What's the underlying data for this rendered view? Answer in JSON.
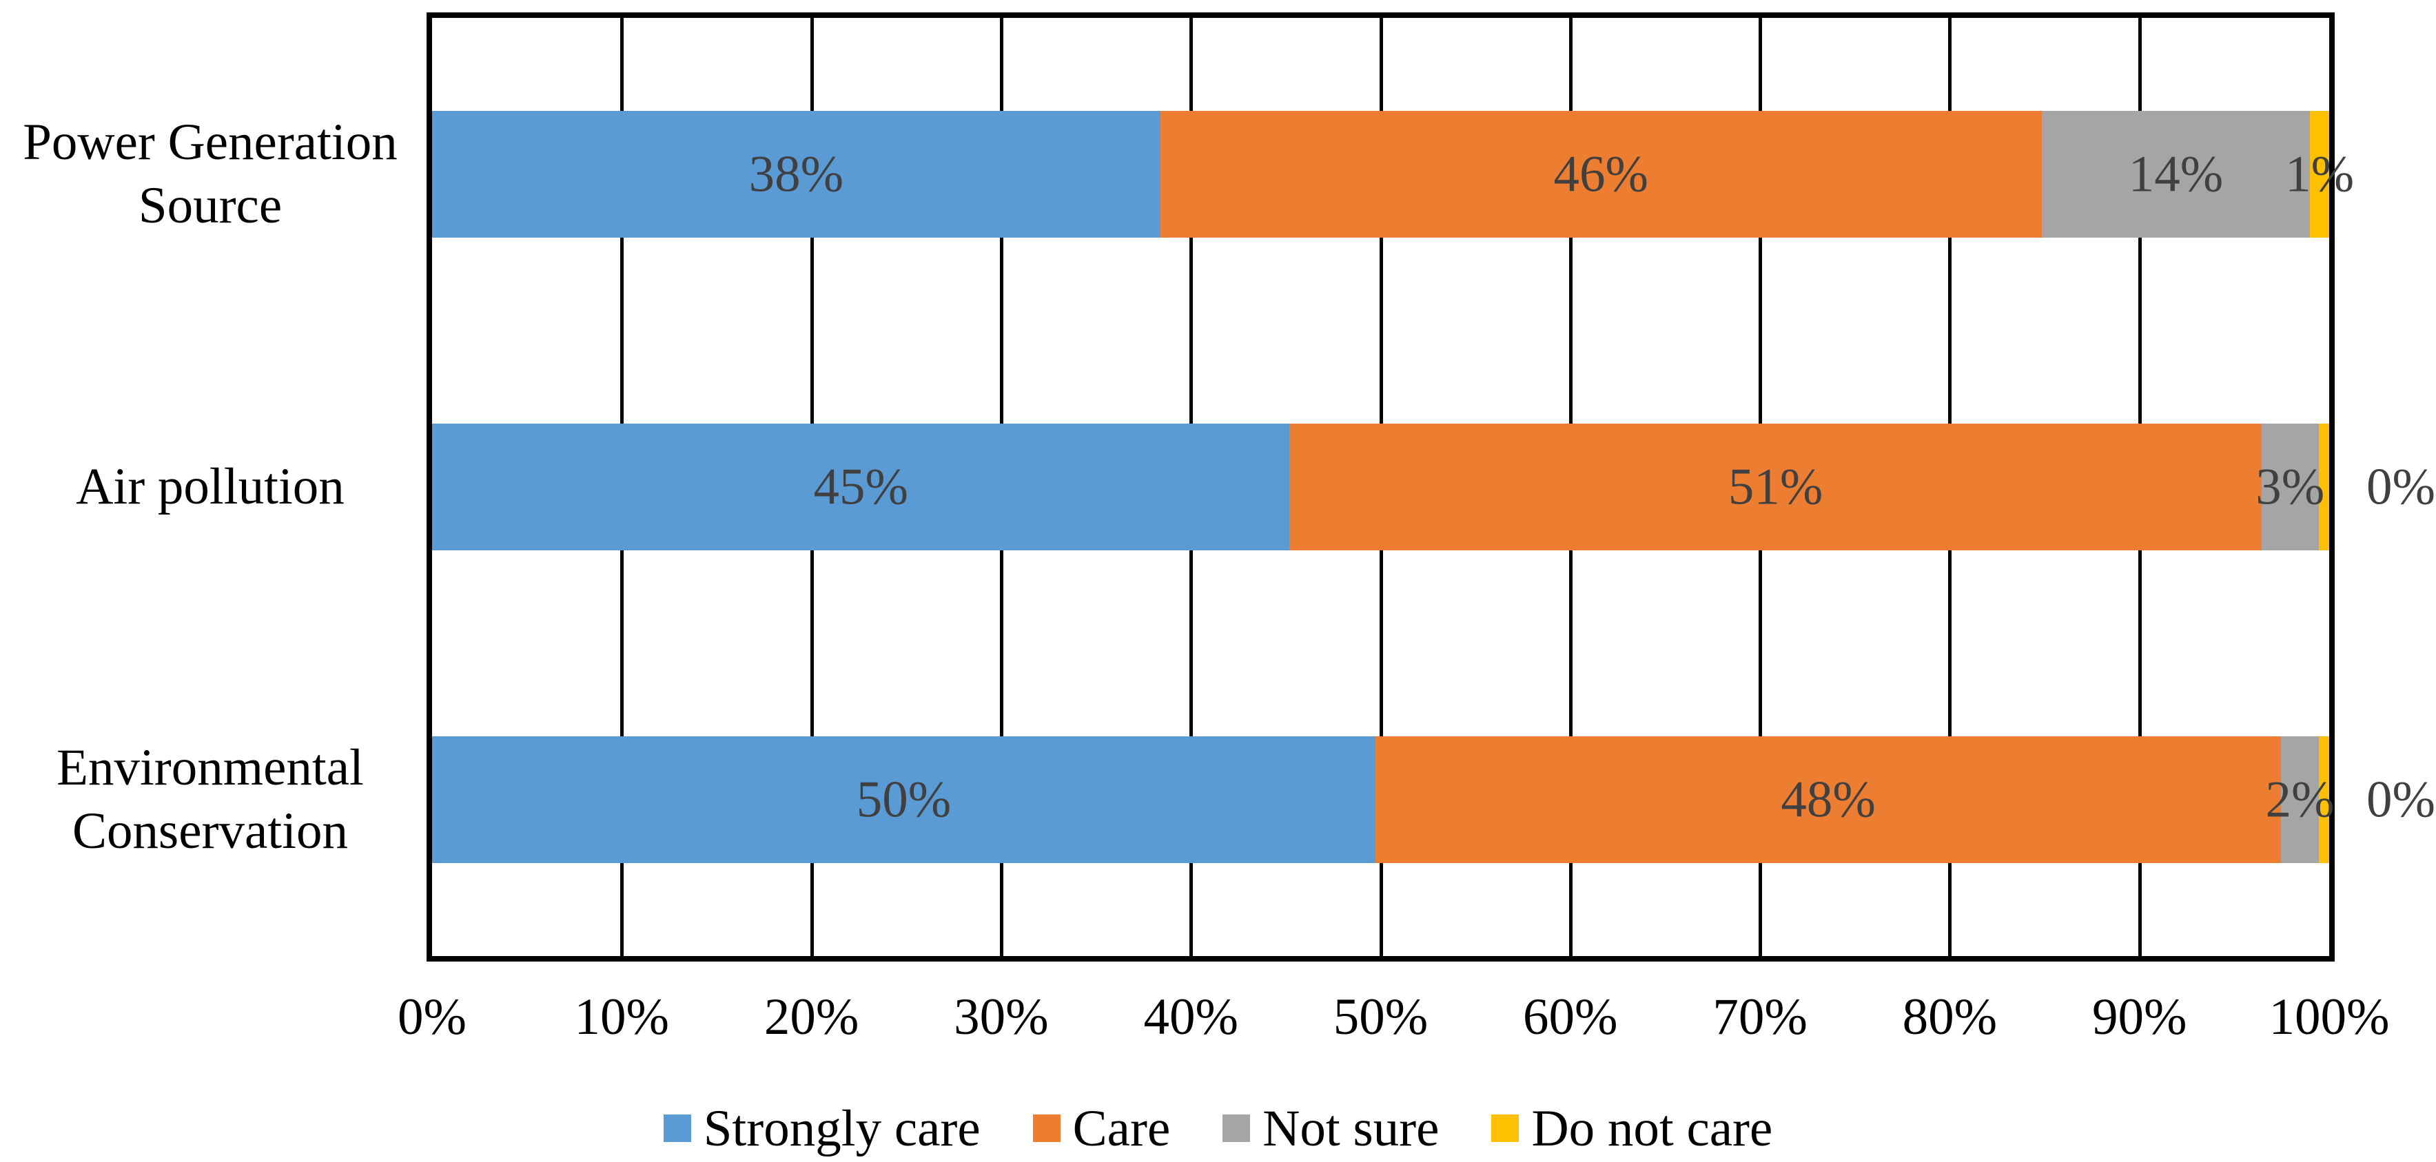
{
  "figure": {
    "background": "#FFFFFF",
    "plot_border_color": "#000000",
    "gridline_color": "#000000"
  },
  "chart_data": {
    "type": "bar",
    "stacked": true,
    "orientation": "horizontal",
    "title": "",
    "xlabel": "",
    "ylabel": "",
    "categories": [
      "Power Generation Source",
      "Air pollution",
      "Environmental Conservation"
    ],
    "series": [
      {
        "name": "Strongly care",
        "color": "#5B9BD5",
        "values": [
          38,
          45,
          50
        ]
      },
      {
        "name": "Care",
        "color": "#ED7D31",
        "values": [
          46,
          51,
          48
        ]
      },
      {
        "name": "Not sure",
        "color": "#A5A5A5",
        "values": [
          14,
          3,
          2
        ]
      },
      {
        "name": "Do not care",
        "color": "#FFC000",
        "values": [
          1,
          0,
          0
        ]
      }
    ],
    "data_labels": [
      [
        "38%",
        "46%",
        "14%",
        "1%"
      ],
      [
        "45%",
        "51%",
        "3%",
        "0%"
      ],
      [
        "50%",
        "48%",
        "2%",
        "0%"
      ]
    ],
    "data_label_color": "#404040",
    "x_axis": {
      "min": 0,
      "max": 100,
      "ticks": [
        "0%",
        "10%",
        "20%",
        "30%",
        "40%",
        "50%",
        "60%",
        "70%",
        "80%",
        "90%",
        "100%"
      ]
    },
    "grid": "vertical-major",
    "legend_position": "bottom"
  }
}
